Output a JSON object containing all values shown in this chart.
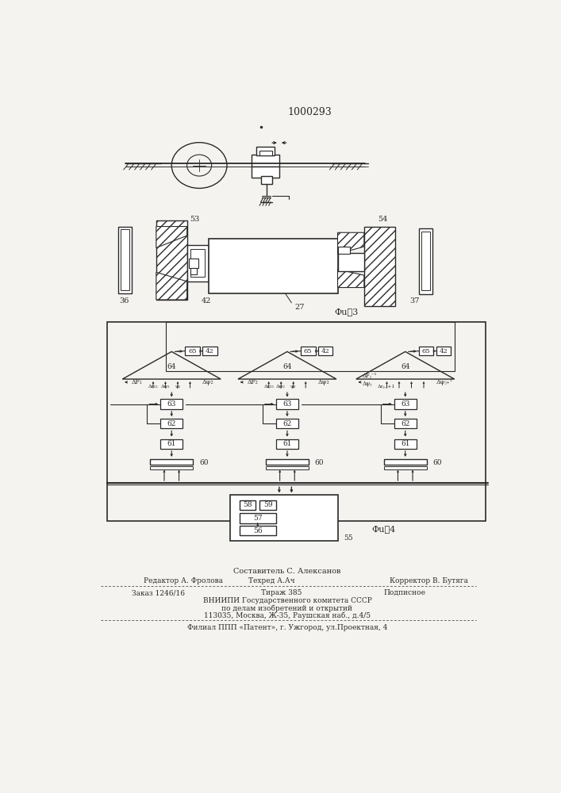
{
  "title": "1000293",
  "bg_color": "#f5f3ef",
  "line_color": "#2a2a2a",
  "fig3_label": "Фu⍒3",
  "fig4_label": "Фu⍒4",
  "footer": {
    "line1": "Составитель С. Алексанов",
    "line2a": "Редактор А. Фролова",
    "line2b": "Техред А.Ач",
    "line2c": "Корректор В. Бутяга",
    "line3a": "Заказ 1246/16",
    "line3b": "Тираж 385",
    "line3c": "Подписное",
    "line4": "ВНИИПИ Государственного комитета СССР",
    "line5": "по делам изобретений и открытий",
    "line6": "113035, Москва, Ж-35, Раушская наб., д.4/5",
    "line7": "Филиал ППП «Патент», г. Ужгород, ул.Проектная, 4"
  }
}
